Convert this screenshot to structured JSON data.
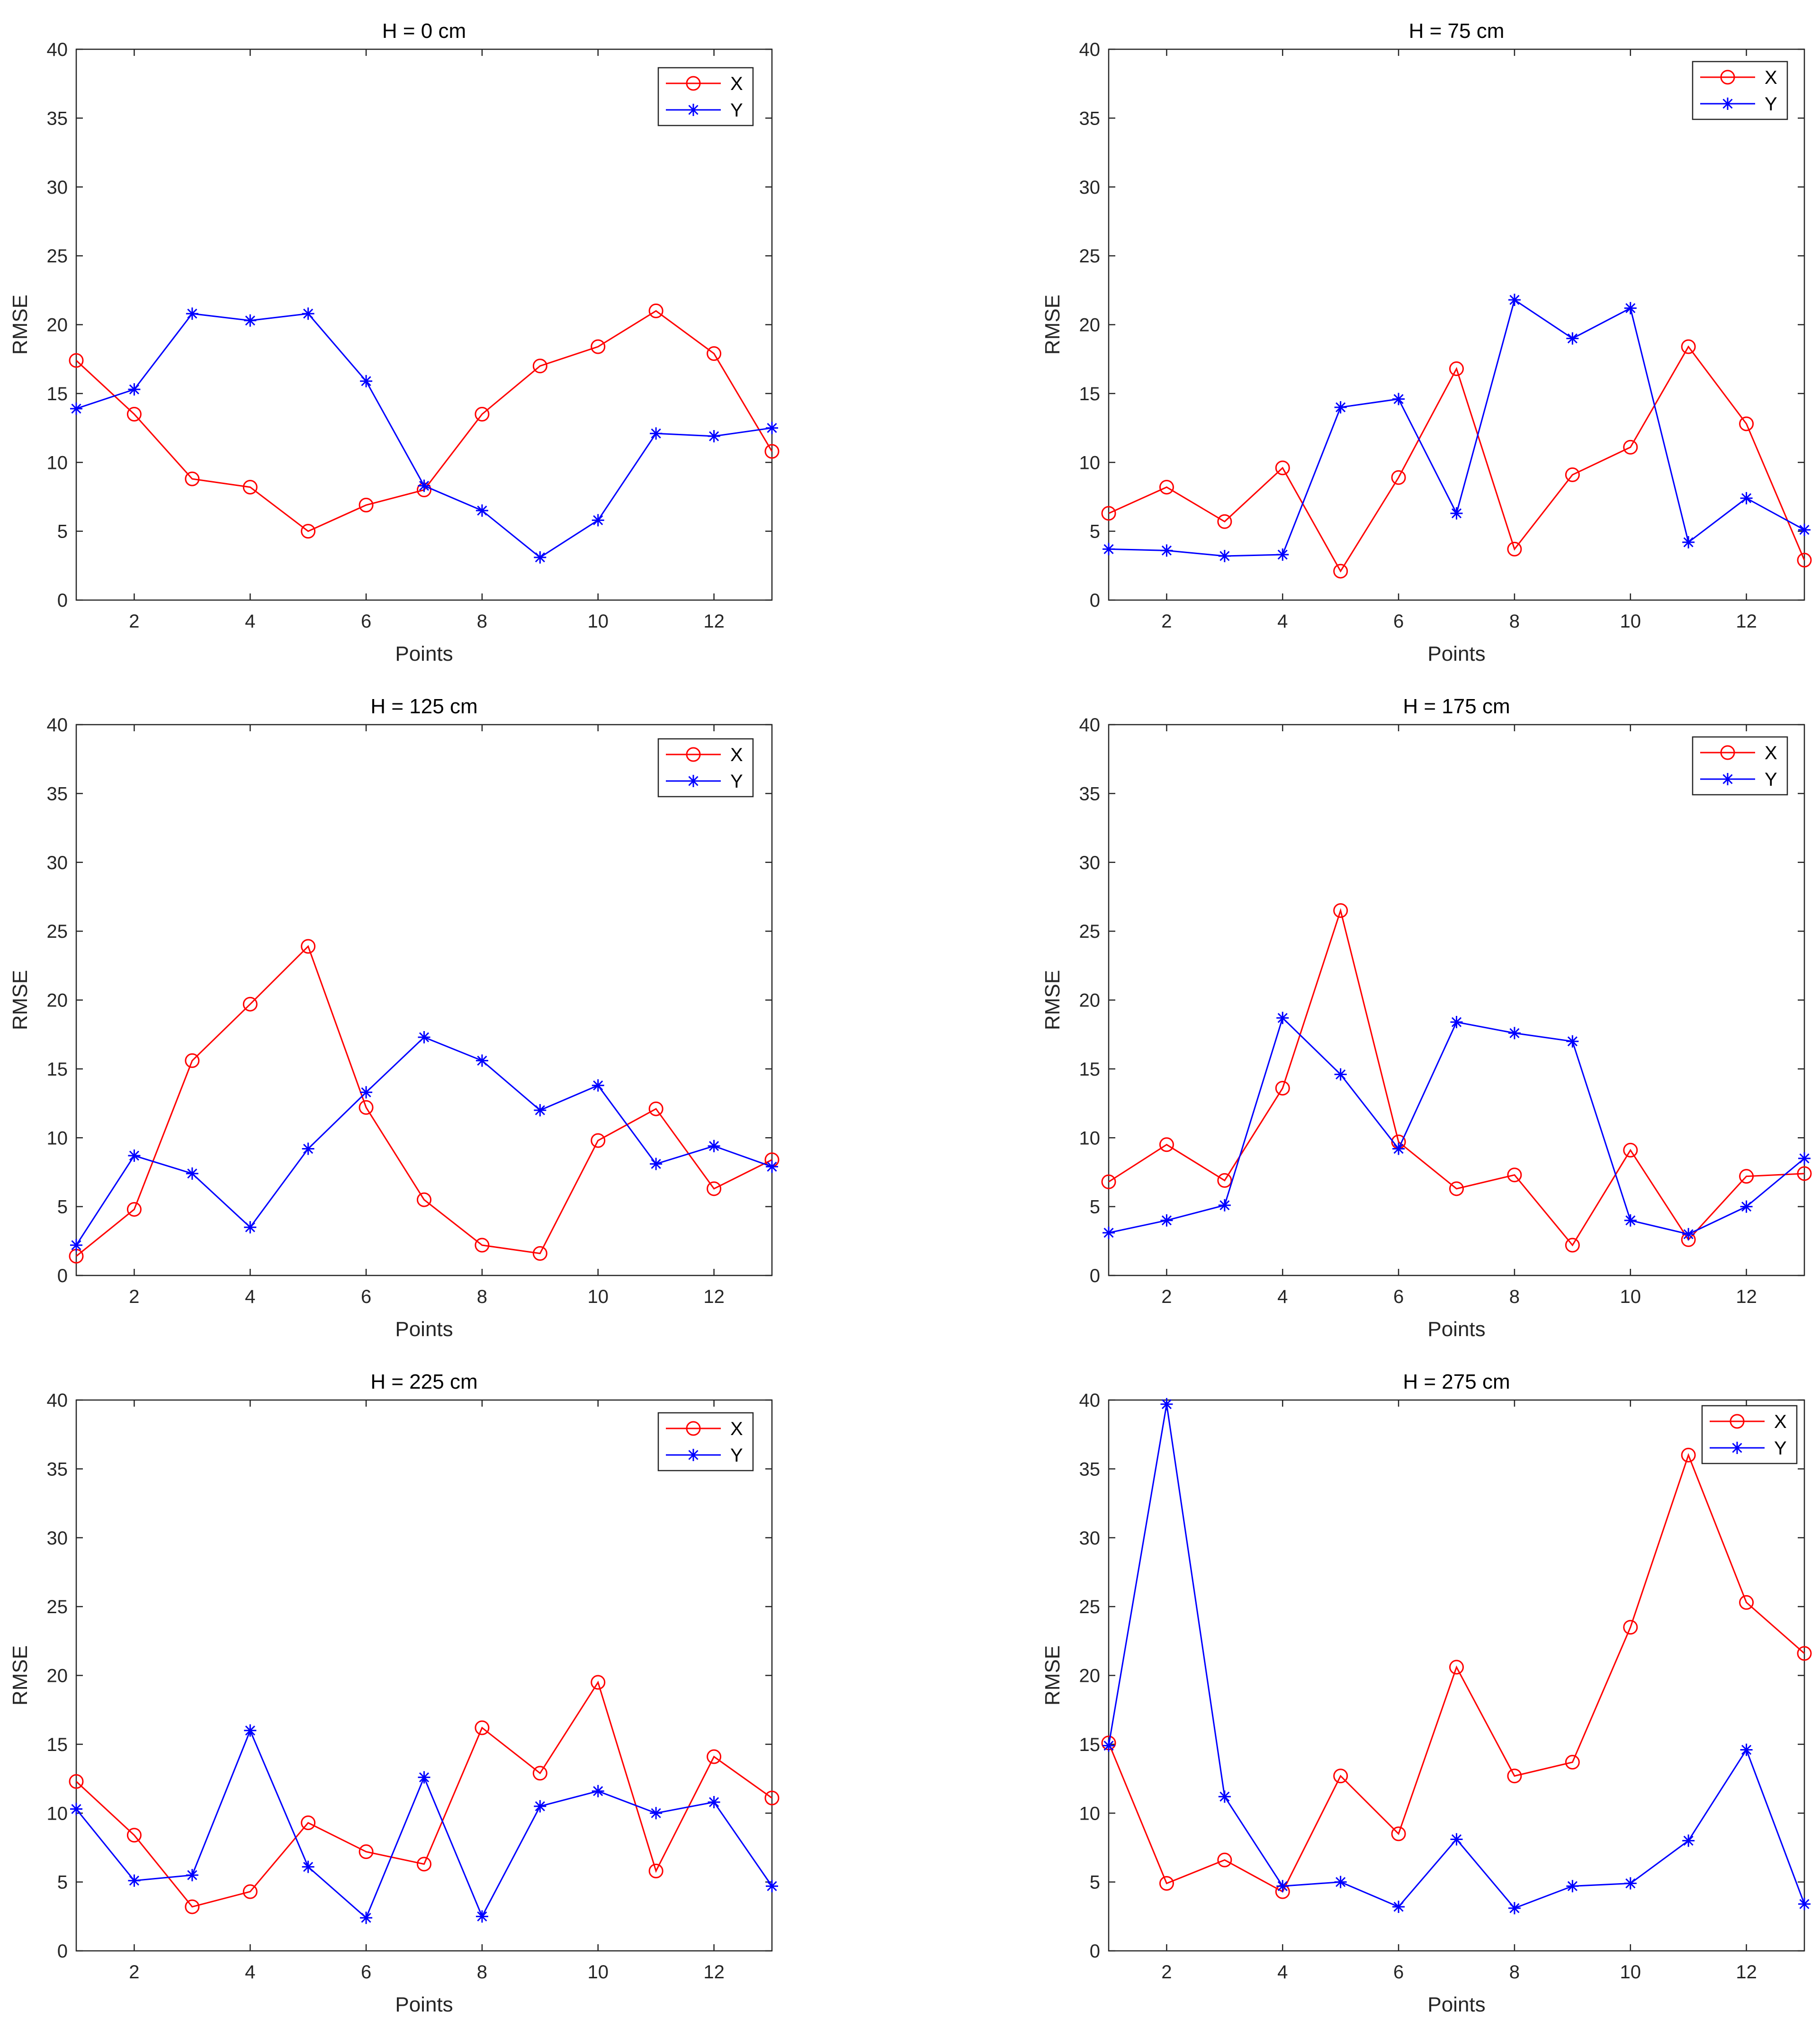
{
  "chart_data": [
    {
      "type": "line",
      "title": "H = 0 cm",
      "xlabel": "Points",
      "ylabel": "RMSE",
      "xlim": [
        1,
        13
      ],
      "ylim": [
        0,
        40
      ],
      "xticks": [
        "2",
        "4",
        "6",
        "8",
        "10",
        "12"
      ],
      "yticks": [
        "0",
        "5",
        "10",
        "15",
        "20",
        "25",
        "30",
        "35",
        "40"
      ],
      "legend_position": "top-right",
      "x": [
        1,
        2,
        3,
        4,
        5,
        6,
        7,
        8,
        9,
        10,
        11,
        12,
        13
      ],
      "series": [
        {
          "name": "X",
          "color": "#ff0000",
          "marker": "circle",
          "values": [
            17.4,
            13.5,
            8.8,
            8.2,
            5.0,
            6.9,
            8.0,
            13.5,
            17.0,
            18.4,
            21.0,
            17.9,
            10.8
          ]
        },
        {
          "name": "Y",
          "color": "#0000ff",
          "marker": "asterisk",
          "values": [
            13.9,
            15.3,
            20.8,
            20.3,
            20.8,
            15.9,
            8.3,
            6.5,
            3.1,
            5.8,
            12.1,
            11.9,
            12.5
          ]
        }
      ]
    },
    {
      "type": "line",
      "title": "H = 75 cm",
      "xlabel": "Points",
      "ylabel": "RMSE",
      "xlim": [
        1,
        13
      ],
      "ylim": [
        0,
        40
      ],
      "xticks": [
        "2",
        "4",
        "6",
        "8",
        "10",
        "12"
      ],
      "yticks": [
        "0",
        "5",
        "10",
        "15",
        "20",
        "25",
        "30",
        "35",
        "40"
      ],
      "legend_position": "top-right",
      "x": [
        1,
        2,
        3,
        4,
        5,
        6,
        7,
        8,
        9,
        10,
        11,
        12,
        13
      ],
      "series": [
        {
          "name": "X",
          "color": "#ff0000",
          "marker": "circle",
          "values": [
            6.3,
            8.2,
            5.7,
            9.6,
            2.1,
            8.9,
            16.8,
            3.7,
            9.1,
            11.1,
            18.4,
            12.8,
            2.9
          ]
        },
        {
          "name": "Y",
          "color": "#0000ff",
          "marker": "asterisk",
          "values": [
            3.7,
            3.6,
            3.2,
            3.3,
            14.0,
            14.6,
            6.3,
            21.8,
            19.0,
            21.2,
            4.2,
            7.4,
            5.1
          ]
        }
      ]
    },
    {
      "type": "line",
      "title": "H = 125 cm",
      "xlabel": "Points",
      "ylabel": "RMSE",
      "xlim": [
        1,
        13
      ],
      "ylim": [
        0,
        40
      ],
      "xticks": [
        "2",
        "4",
        "6",
        "8",
        "10",
        "12"
      ],
      "yticks": [
        "0",
        "5",
        "10",
        "15",
        "20",
        "25",
        "30",
        "35",
        "40"
      ],
      "legend_position": "top-right",
      "x": [
        1,
        2,
        3,
        4,
        5,
        6,
        7,
        8,
        9,
        10,
        11,
        12,
        13
      ],
      "series": [
        {
          "name": "X",
          "color": "#ff0000",
          "marker": "circle",
          "values": [
            1.4,
            4.8,
            15.6,
            19.7,
            23.9,
            12.2,
            5.5,
            2.2,
            1.6,
            9.8,
            12.1,
            6.3,
            8.4
          ]
        },
        {
          "name": "Y",
          "color": "#0000ff",
          "marker": "asterisk",
          "values": [
            2.2,
            8.7,
            7.4,
            3.5,
            9.2,
            13.3,
            17.3,
            15.6,
            12.0,
            13.8,
            8.1,
            9.4,
            7.9
          ]
        }
      ]
    },
    {
      "type": "line",
      "title": "H = 175 cm",
      "xlabel": "Points",
      "ylabel": "RMSE",
      "xlim": [
        1,
        13
      ],
      "ylim": [
        0,
        40
      ],
      "xticks": [
        "2",
        "4",
        "6",
        "8",
        "10",
        "12"
      ],
      "yticks": [
        "0",
        "5",
        "10",
        "15",
        "20",
        "25",
        "30",
        "35",
        "40"
      ],
      "legend_position": "top-right",
      "x": [
        1,
        2,
        3,
        4,
        5,
        6,
        7,
        8,
        9,
        10,
        11,
        12,
        13
      ],
      "series": [
        {
          "name": "X",
          "color": "#ff0000",
          "marker": "circle",
          "values": [
            6.8,
            9.5,
            6.9,
            13.6,
            26.5,
            9.7,
            6.3,
            7.3,
            2.2,
            9.1,
            2.6,
            7.2,
            7.4
          ]
        },
        {
          "name": "Y",
          "color": "#0000ff",
          "marker": "asterisk",
          "values": [
            3.1,
            4.0,
            5.1,
            18.7,
            14.6,
            9.2,
            18.4,
            17.6,
            17.0,
            4.0,
            3.0,
            5.0,
            8.5
          ]
        }
      ]
    },
    {
      "type": "line",
      "title": "H = 225 cm",
      "xlabel": "Points",
      "ylabel": "RMSE",
      "xlim": [
        1,
        13
      ],
      "ylim": [
        0,
        40
      ],
      "xticks": [
        "2",
        "4",
        "6",
        "8",
        "10",
        "12"
      ],
      "yticks": [
        "0",
        "5",
        "10",
        "15",
        "20",
        "25",
        "30",
        "35",
        "40"
      ],
      "legend_position": "top-right",
      "x": [
        1,
        2,
        3,
        4,
        5,
        6,
        7,
        8,
        9,
        10,
        11,
        12,
        13
      ],
      "series": [
        {
          "name": "X",
          "color": "#ff0000",
          "marker": "circle",
          "values": [
            12.3,
            8.4,
            3.2,
            4.3,
            9.3,
            7.2,
            6.3,
            16.2,
            12.9,
            19.5,
            5.8,
            14.1,
            11.1
          ]
        },
        {
          "name": "Y",
          "color": "#0000ff",
          "marker": "asterisk",
          "values": [
            10.3,
            5.1,
            5.5,
            16.0,
            6.1,
            2.4,
            12.6,
            2.5,
            10.5,
            11.6,
            10.0,
            10.8,
            4.7
          ]
        }
      ]
    },
    {
      "type": "line",
      "title": "H = 275 cm",
      "xlabel": "Points",
      "ylabel": "RMSE",
      "xlim": [
        1,
        13
      ],
      "ylim": [
        0,
        40
      ],
      "xticks": [
        "2",
        "4",
        "6",
        "8",
        "10",
        "12"
      ],
      "yticks": [
        "0",
        "5",
        "10",
        "15",
        "20",
        "25",
        "30",
        "35",
        "40"
      ],
      "legend_position": "top-right",
      "x": [
        1,
        2,
        3,
        4,
        5,
        6,
        7,
        8,
        9,
        10,
        11,
        12,
        13
      ],
      "series": [
        {
          "name": "X",
          "color": "#ff0000",
          "marker": "circle",
          "values": [
            15.1,
            4.9,
            6.6,
            4.3,
            12.7,
            8.5,
            20.6,
            12.7,
            13.7,
            23.5,
            36.0,
            25.3,
            21.6
          ]
        },
        {
          "name": "Y",
          "color": "#0000ff",
          "marker": "asterisk",
          "values": [
            14.9,
            39.7,
            11.2,
            4.7,
            5.0,
            3.2,
            8.1,
            3.1,
            4.7,
            4.9,
            8.0,
            14.6,
            3.4
          ]
        }
      ]
    }
  ]
}
